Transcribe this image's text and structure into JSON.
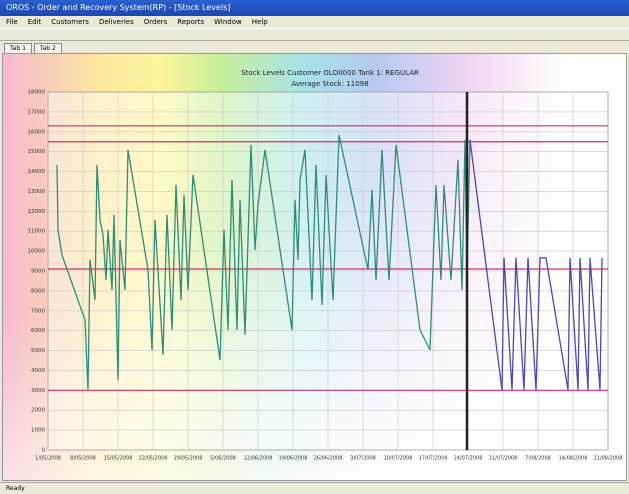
{
  "window": {
    "title": "OROS - Order and Recovery System(RP) - [Stock Levels]",
    "menu": [
      "File",
      "Edit",
      "Customers",
      "Deliveries",
      "Orders",
      "Reports",
      "Window",
      "Help"
    ],
    "tabs": [
      "Tab 1",
      "Tab 2"
    ],
    "status": "Ready"
  },
  "chart_data": {
    "type": "line",
    "title": "Stock Levels Customer OLD0000 Tank 1: REGULAR",
    "subtitle": "Average Stock: 11098",
    "xlim": [
      0,
      112
    ],
    "xticks": [
      {
        "value": 0,
        "label": "1/05/2008"
      },
      {
        "value": 7,
        "label": "8/05/2008"
      },
      {
        "value": 14,
        "label": "15/05/2008"
      },
      {
        "value": 21,
        "label": "22/05/2008"
      },
      {
        "value": 28,
        "label": "29/05/2008"
      },
      {
        "value": 35,
        "label": "5/06/2008"
      },
      {
        "value": 42,
        "label": "12/06/2008"
      },
      {
        "value": 49,
        "label": "19/06/2008"
      },
      {
        "value": 56,
        "label": "26/06/2008"
      },
      {
        "value": 63,
        "label": "3/07/2008"
      },
      {
        "value": 70,
        "label": "10/07/2008"
      },
      {
        "value": 77,
        "label": "17/07/2008"
      },
      {
        "value": 84,
        "label": "24/07/2008"
      },
      {
        "value": 91,
        "label": "31/07/2008"
      },
      {
        "value": 98,
        "label": "7/08/2008"
      },
      {
        "value": 105,
        "label": "14/08/2008"
      },
      {
        "value": 112,
        "label": "21/08/2008"
      }
    ],
    "ylim": [
      0,
      18000
    ],
    "yticks": [
      0,
      1000,
      2000,
      3000,
      4000,
      5000,
      6000,
      7000,
      8000,
      9000,
      10000,
      11000,
      12000,
      13000,
      14000,
      15000,
      16000,
      17000,
      18000
    ],
    "grid": true,
    "ref_lines": [
      16300,
      15500,
      9100,
      3000
    ],
    "ref_color": "#d0306a",
    "marker_x": 83.8,
    "series": [
      {
        "color": "#2f8c78",
        "x": [
          1.8,
          2,
          2.8,
          7.4,
          8,
          8.4,
          9.4,
          9.8,
          10.4,
          11,
          11.6,
          12,
          12.8,
          13.2,
          14,
          14.4,
          15.4,
          16,
          20,
          20.8,
          21.4,
          23,
          23.8,
          24.8,
          25.6,
          26.6,
          27.2,
          28,
          29,
          34.4,
          35.2,
          36,
          36.8,
          37.8,
          38.4,
          39.4,
          40.6,
          41.4,
          42,
          43.4,
          48.8,
          49.4,
          50,
          50.4,
          51.4,
          52.8,
          53.6,
          54.8,
          55.6,
          57,
          58.2,
          64,
          64.8,
          65.6,
          66.8,
          68.2,
          69.6,
          74.4,
          76.4,
          77.6,
          78.6,
          79.2,
          80.6,
          82,
          82.8,
          83.4,
          83.8,
          84.4
        ],
        "values": [
          14330,
          11070,
          9800,
          6540,
          3020,
          9560,
          7540,
          14330,
          11570,
          10810,
          8550,
          11070,
          8050,
          11820,
          3520,
          10560,
          8050,
          15090,
          9060,
          5030,
          11570,
          4780,
          11820,
          6040,
          13330,
          7540,
          12830,
          8050,
          13830,
          4530,
          11070,
          6040,
          13580,
          6040,
          12580,
          5790,
          15340,
          10060,
          12330,
          15090,
          6040,
          12580,
          9560,
          13580,
          15090,
          7540,
          14330,
          7290,
          13830,
          7540,
          15840,
          9060,
          13080,
          8550,
          15090,
          8550,
          15340,
          6040,
          5030,
          13330,
          8550,
          13330,
          8550,
          14590,
          8050,
          15590,
          9060,
          15590
        ]
      },
      {
        "color": "#4a4aa8",
        "x": [
          84.4,
          90.8,
          91.2,
          92.8,
          93.6,
          95.2,
          96,
          97.6,
          98.4,
          99.6,
          104,
          104.4,
          106,
          106.4,
          108,
          108.4,
          110.4,
          110.8
        ],
        "values": [
          15590,
          3020,
          9660,
          3020,
          9660,
          3020,
          9660,
          3020,
          9660,
          9660,
          3020,
          9660,
          3020,
          9660,
          3020,
          9660,
          3020,
          9660
        ]
      }
    ]
  }
}
